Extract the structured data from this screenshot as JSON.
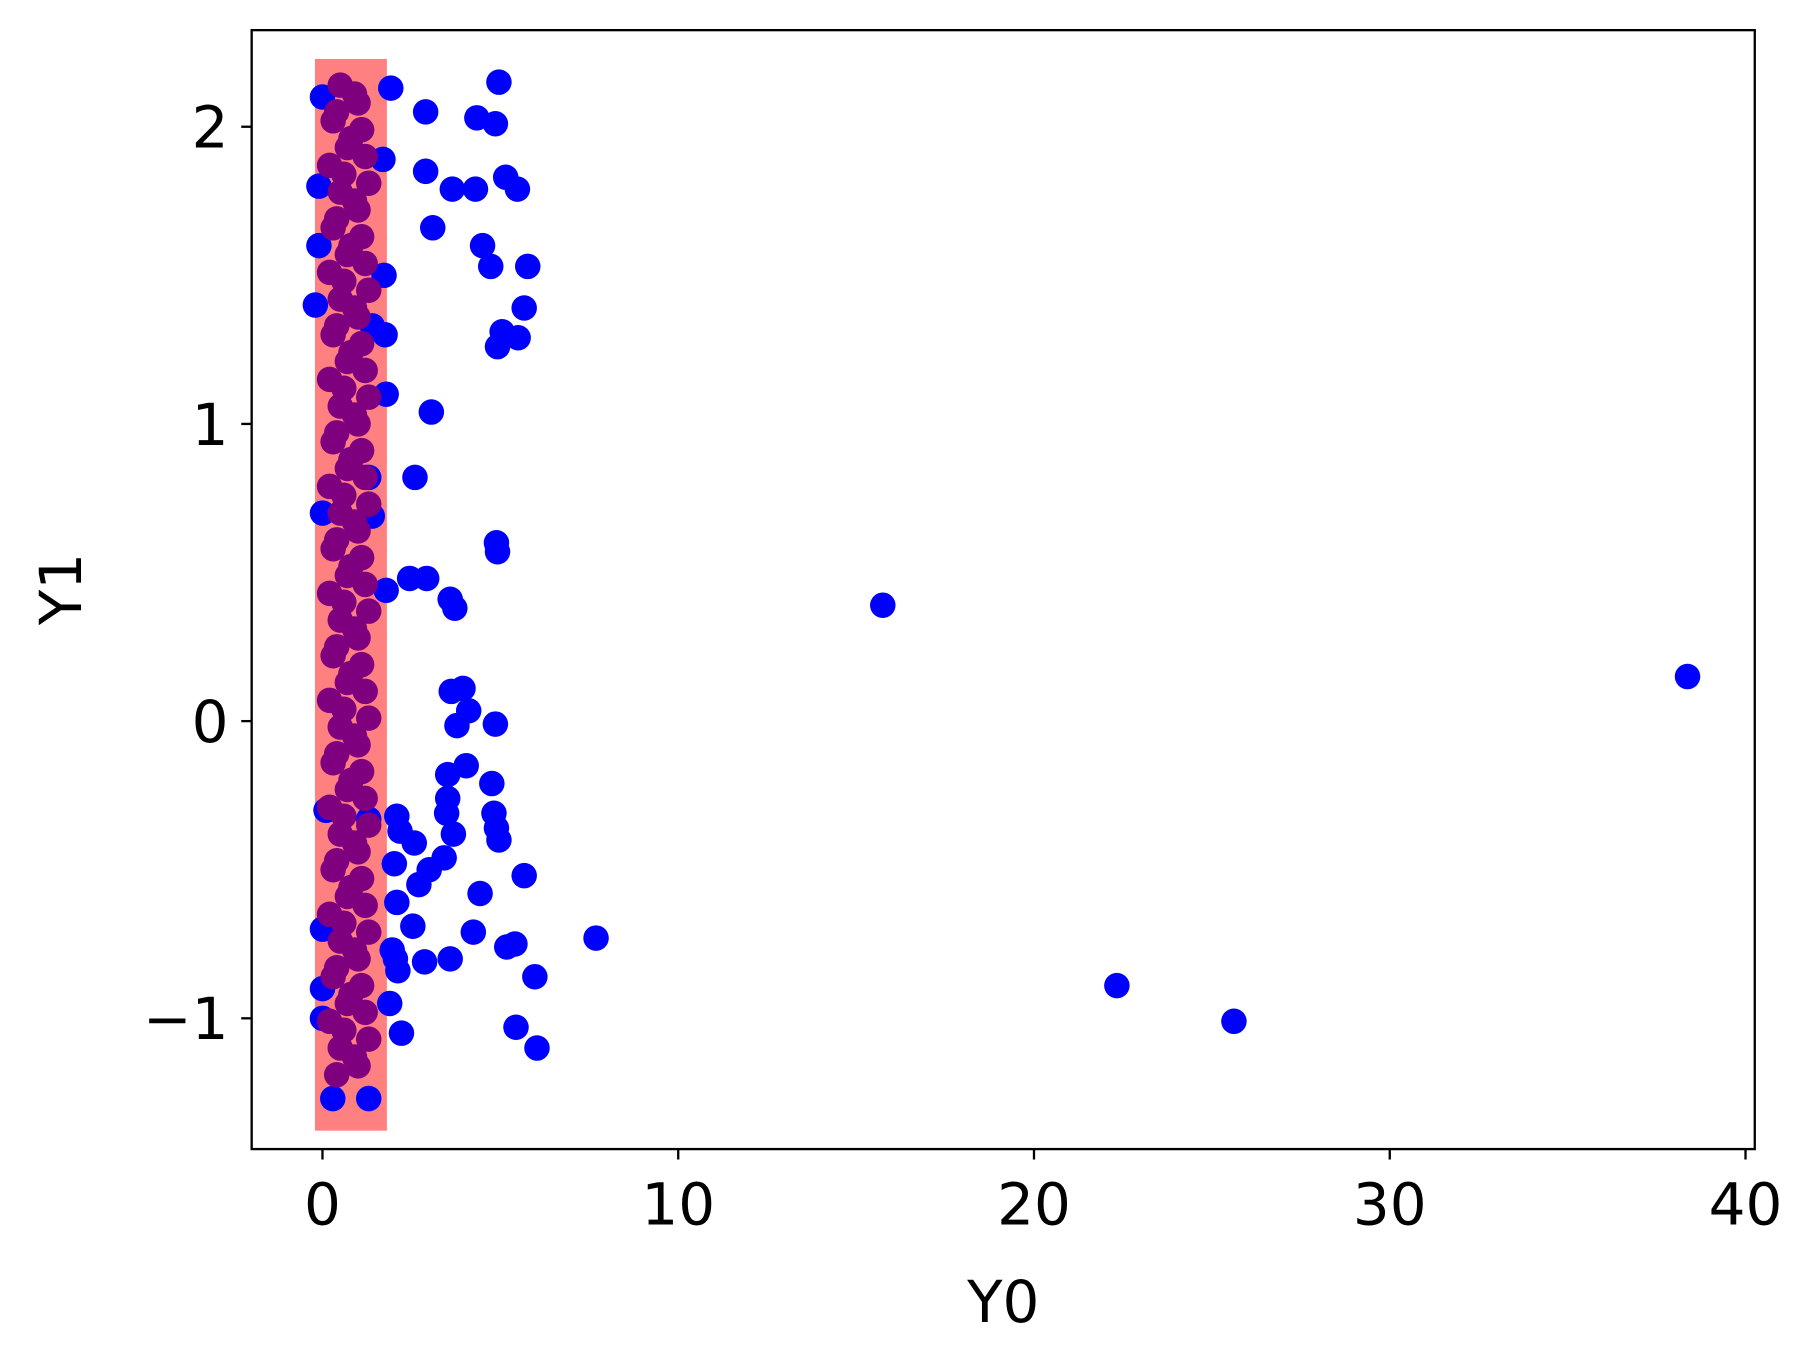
{
  "chart_data": {
    "type": "scatter",
    "x_label": "Y0",
    "y_label": "Y1",
    "xlim": [
      -1.99,
      40.26
    ],
    "ylim": [
      -1.44,
      2.325
    ],
    "xticks": [
      0,
      10,
      20,
      30,
      40
    ],
    "yticks": [
      {
        "value": -1,
        "label": "−1"
      },
      0,
      1,
      2
    ],
    "series": [
      {
        "color": "#ff8080",
        "marker": "rect",
        "x": [
          0.8,
          0.8,
          0.8,
          0.8,
          0.8,
          0.8,
          0.8,
          0.8,
          0.8,
          0.8,
          0.8,
          0.8,
          0.8,
          0.8,
          0.8,
          0.8,
          0.8,
          0.8,
          0.8,
          0.8,
          0.8,
          0.8,
          0.8,
          0.8
        ],
        "values": [
          2.15,
          2,
          1.85,
          1.7,
          1.55,
          1.4,
          1.25,
          1.1,
          0.95,
          0.8,
          0.65,
          0.5,
          0.35,
          0.2,
          0.05,
          -0.1,
          -0.25,
          -0.4,
          -0.55,
          -0.7,
          -0.85,
          -1,
          -1.15,
          -1.3
        ]
      },
      {
        "color": "#0000ff",
        "marker": "circle",
        "x": [
          4.96,
          1.92,
          2.9,
          4.34,
          4.86,
          1.7,
          2.9,
          5.15,
          3.65,
          4.3,
          5.48,
          3.1,
          4.5,
          4.73,
          5.77,
          1.73,
          5.67,
          5.05,
          5.5,
          4.92,
          1.76,
          1.79,
          3.06,
          2.6,
          4.89,
          4.92,
          2.45,
          2.93,
          1.79,
          3.59,
          3.72,
          15.75,
          38.37,
          3.62,
          3.95,
          4.11,
          3.78,
          4.86,
          4.04,
          3.52,
          4.76,
          3.52,
          3.49,
          4.82,
          4.89,
          2.09,
          2.18,
          3.68,
          2.58,
          4.96,
          3.42,
          3.0,
          2.02,
          2.71,
          5.67,
          4.43,
          2.09,
          2.54,
          4.24,
          7.69,
          5.41,
          5.18,
          1.96,
          2.05,
          2.87,
          3.59,
          2.12,
          5.97,
          22.33,
          1.89,
          5.44,
          25.62,
          2.22,
          6.03,
          0.29,
          1.3,
          0.0,
          -0.1,
          -0.1,
          -0.2,
          0.0,
          0.1,
          0.0,
          0.0,
          0.0,
          1.4,
          1.3,
          1.4,
          1.3
        ],
        "values": [
          2.15,
          2.13,
          2.05,
          2.03,
          2.01,
          1.89,
          1.85,
          1.83,
          1.79,
          1.79,
          1.79,
          1.66,
          1.6,
          1.53,
          1.53,
          1.5,
          1.39,
          1.31,
          1.29,
          1.26,
          1.3,
          1.1,
          1.04,
          0.82,
          0.6,
          0.57,
          0.48,
          0.48,
          0.44,
          0.41,
          0.38,
          0.39,
          0.15,
          0.1,
          0.11,
          0.035,
          -0.015,
          -0.01,
          -0.15,
          -0.18,
          -0.21,
          -0.26,
          -0.31,
          -0.31,
          -0.36,
          -0.32,
          -0.37,
          -0.38,
          -0.41,
          -0.4,
          -0.46,
          -0.5,
          -0.48,
          -0.55,
          -0.52,
          -0.58,
          -0.61,
          -0.69,
          -0.71,
          -0.73,
          -0.75,
          -0.76,
          -0.77,
          -0.8,
          -0.81,
          -0.8,
          -0.84,
          -0.86,
          -0.89,
          -0.95,
          -1.03,
          -1.01,
          -1.05,
          -1.1,
          -1.27,
          -1.27,
          2.1,
          1.8,
          1.6,
          1.4,
          0.7,
          -0.3,
          -0.7,
          -0.9,
          -1.0,
          1.33,
          0.82,
          0.69,
          -0.33
        ]
      },
      {
        "color": "#7f007f",
        "marker": "circle",
        "x": [
          0.5,
          1.0,
          0.3,
          0.8,
          1.2,
          0.6,
          0.5,
          1.0,
          0.3,
          0.8,
          1.2,
          0.6,
          0.5,
          1.0,
          0.3,
          0.8,
          1.2,
          0.6,
          0.5,
          1.0,
          0.3,
          0.8,
          1.2,
          0.6,
          0.5,
          1.0,
          0.3,
          0.8,
          1.2,
          0.6,
          0.5,
          1.0,
          0.3,
          0.8,
          1.2,
          0.6,
          0.5,
          1.0,
          0.3,
          0.8,
          1.2,
          0.6,
          0.5,
          1.0,
          0.3,
          0.8,
          1.2,
          0.6,
          0.5,
          1.0,
          0.3,
          0.8,
          1.2,
          0.6,
          0.5,
          1.0,
          0.9,
          0.4,
          1.1,
          0.7,
          0.2,
          1.3,
          0.9,
          0.4,
          1.1,
          0.7,
          0.2,
          1.3,
          0.9,
          0.4,
          1.1,
          0.7,
          0.2,
          1.3,
          0.9,
          0.4,
          1.1,
          0.7,
          0.2,
          1.3,
          0.9,
          0.4,
          1.1,
          0.7,
          0.2,
          1.3,
          0.9,
          0.4,
          1.1,
          0.7,
          0.2,
          1.3,
          0.9,
          0.4,
          1.1,
          0.7,
          0.2,
          1.3,
          0.9,
          0.4,
          1.1,
          0.7,
          0.2,
          1.3,
          0.9,
          0.4,
          1.1,
          0.7,
          0.2,
          1.3,
          0.9,
          0.4
        ],
        "values": [
          2.14,
          2.08,
          2.02,
          1.96,
          1.9,
          1.84,
          1.78,
          1.72,
          1.66,
          1.6,
          1.54,
          1.48,
          1.42,
          1.36,
          1.3,
          1.24,
          1.18,
          1.12,
          1.06,
          1,
          0.94,
          0.88,
          0.82,
          0.76,
          0.7,
          0.64,
          0.58,
          0.52,
          0.46,
          0.4,
          0.34,
          0.28,
          0.22,
          0.16,
          0.1,
          0.04,
          -0.02,
          -0.08,
          -0.14,
          -0.2,
          -0.26,
          -0.32,
          -0.38,
          -0.44,
          -0.5,
          -0.56,
          -0.62,
          -0.68,
          -0.74,
          -0.8,
          -0.86,
          -0.92,
          -0.98,
          -1.04,
          -1.1,
          -1.16,
          2.11,
          2.05,
          1.99,
          1.93,
          1.87,
          1.81,
          1.75,
          1.69,
          1.63,
          1.57,
          1.51,
          1.45,
          1.39,
          1.33,
          1.27,
          1.21,
          1.15,
          1.09,
          1.03,
          0.97,
          0.91,
          0.85,
          0.79,
          0.73,
          0.67,
          0.61,
          0.55,
          0.49,
          0.43,
          0.37,
          0.31,
          0.25,
          0.19,
          0.13,
          0.07,
          0.01,
          -0.05,
          -0.11,
          -0.17,
          -0.23,
          -0.29,
          -0.35,
          -0.41,
          -0.47,
          -0.53,
          -0.59,
          -0.65,
          -0.71,
          -0.77,
          -0.83,
          -0.89,
          -0.95,
          -1.01,
          -1.07,
          -1.13,
          -1.19
        ]
      }
    ]
  }
}
